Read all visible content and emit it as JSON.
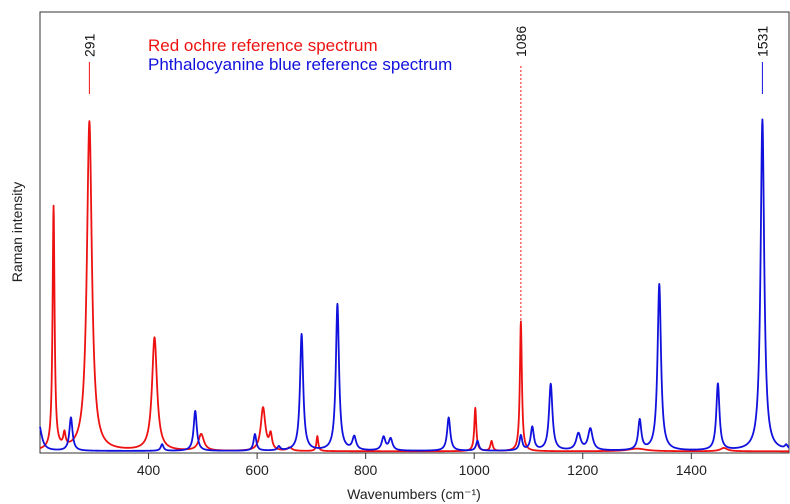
{
  "chart_data": {
    "type": "line",
    "title": "",
    "xlabel": "Wavenumbers (cm⁻¹)",
    "ylabel": "Raman intensity",
    "xlim": [
      200,
      1580
    ],
    "ylim": [
      0,
      1.0
    ],
    "x_ticks": [
      400,
      600,
      800,
      1000,
      1200,
      1400
    ],
    "y_ticks": [],
    "grid": false,
    "legend": {
      "placement": "top-center"
    },
    "series": [
      {
        "name": "Red ochre reference spectrum",
        "color": "#ee1111",
        "baseline": 0.005,
        "peaks": [
          {
            "x": 225,
            "height": 0.73,
            "width": 2.2
          },
          {
            "x": 245,
            "height": 0.04,
            "width": 2.5
          },
          {
            "x": 291,
            "height": 0.99,
            "width": 5.5
          },
          {
            "x": 411,
            "height": 0.34,
            "width": 5.5
          },
          {
            "x": 497,
            "height": 0.05,
            "width": 6
          },
          {
            "x": 611,
            "height": 0.13,
            "width": 5
          },
          {
            "x": 625,
            "height": 0.045,
            "width": 3
          },
          {
            "x": 660,
            "height": 0.01,
            "width": 5
          },
          {
            "x": 711,
            "height": 0.045,
            "width": 2
          },
          {
            "x": 1002,
            "height": 0.13,
            "width": 2.2
          },
          {
            "x": 1032,
            "height": 0.03,
            "width": 2.5
          },
          {
            "x": 1086,
            "height": 0.39,
            "width": 2.2
          },
          {
            "x": 1300,
            "height": 0.008,
            "width": 20
          },
          {
            "x": 1460,
            "height": 0.01,
            "width": 8
          }
        ]
      },
      {
        "name": "Phthalocyanine blue reference spectrum",
        "color": "#1111dd",
        "baseline": 0.006,
        "peaks": [
          {
            "x": 198,
            "height": 0.08,
            "width": 6
          },
          {
            "x": 257,
            "height": 0.1,
            "width": 3.5
          },
          {
            "x": 425,
            "height": 0.02,
            "width": 3
          },
          {
            "x": 486,
            "height": 0.12,
            "width": 3.5
          },
          {
            "x": 596,
            "height": 0.05,
            "width": 3
          },
          {
            "x": 640,
            "height": 0.012,
            "width": 3
          },
          {
            "x": 682,
            "height": 0.35,
            "width": 3.5
          },
          {
            "x": 748,
            "height": 0.44,
            "width": 3.5
          },
          {
            "x": 779,
            "height": 0.04,
            "width": 4
          },
          {
            "x": 833,
            "height": 0.04,
            "width": 4
          },
          {
            "x": 846,
            "height": 0.035,
            "width": 4
          },
          {
            "x": 953,
            "height": 0.1,
            "width": 3.5
          },
          {
            "x": 1006,
            "height": 0.03,
            "width": 3
          },
          {
            "x": 1086,
            "height": 0.045,
            "width": 3
          },
          {
            "x": 1107,
            "height": 0.07,
            "width": 3.5
          },
          {
            "x": 1141,
            "height": 0.2,
            "width": 3.8
          },
          {
            "x": 1192,
            "height": 0.05,
            "width": 5
          },
          {
            "x": 1214,
            "height": 0.065,
            "width": 5
          },
          {
            "x": 1305,
            "height": 0.09,
            "width": 3.5
          },
          {
            "x": 1341,
            "height": 0.5,
            "width": 3.8
          },
          {
            "x": 1449,
            "height": 0.2,
            "width": 3.5
          },
          {
            "x": 1531,
            "height": 0.995,
            "width": 4
          },
          {
            "x": 1575,
            "height": 0.012,
            "width": 3
          }
        ]
      }
    ],
    "peak_markers": [
      {
        "label": "291",
        "x": 291,
        "color": "#ee1111",
        "dashed": false
      },
      {
        "label": "1086",
        "x": 1086,
        "color": "#ee1111",
        "dashed": true
      },
      {
        "label": "1531",
        "x": 1531,
        "color": "#1111dd",
        "dashed": false
      }
    ]
  }
}
